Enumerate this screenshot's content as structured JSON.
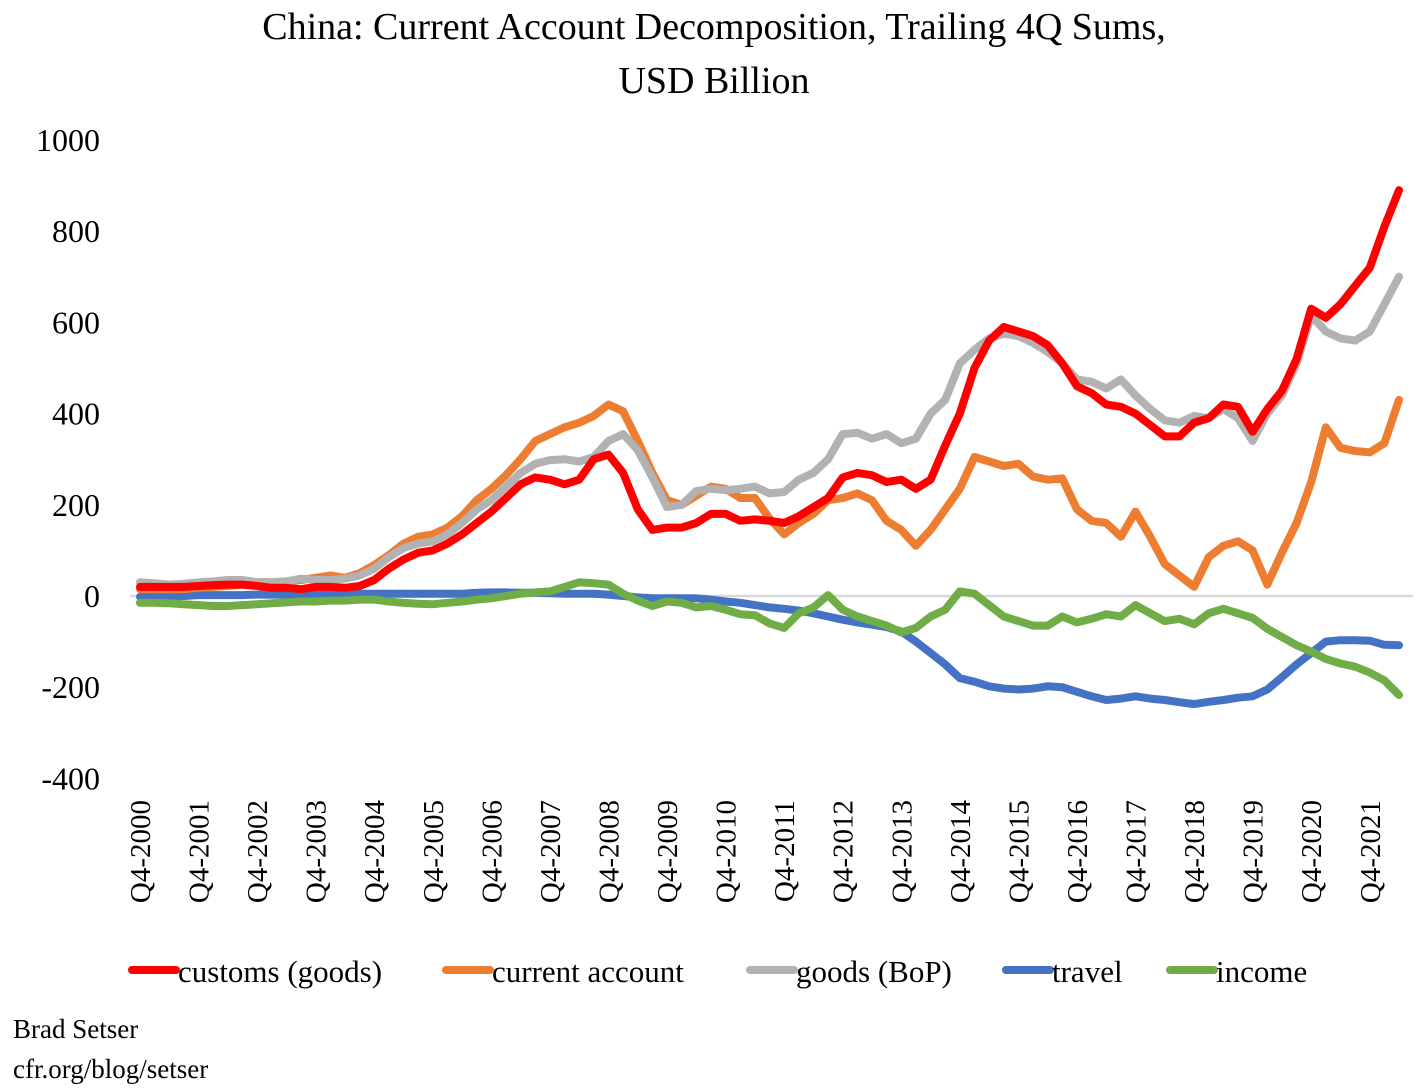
{
  "chart_data": {
    "type": "line",
    "title": "China: Current Account Decomposition, Trailing 4Q Sums,",
    "subtitle": "USD Billion",
    "xlabel": "",
    "ylabel": "",
    "ylim": [
      -400,
      1000
    ],
    "yticks": [
      1000,
      800,
      600,
      400,
      200,
      0,
      -200,
      -400
    ],
    "x_start": "Q4-2000",
    "x_end": "Q2-2022",
    "frequency": "quarterly",
    "xtick_labels": [
      "Q4-2000",
      "Q4-2001",
      "Q4-2002",
      "Q4-2003",
      "Q4-2004",
      "Q4-2005",
      "Q4-2006",
      "Q4-2007",
      "Q4-2008",
      "Q4-2009",
      "Q4-2010",
      "Q4-2011",
      "Q4-2012",
      "Q4-2013",
      "Q4-2014",
      "Q4-2015",
      "Q4-2016",
      "Q4-2017",
      "Q4-2018",
      "Q4-2019",
      "Q4-2020",
      "Q4-2021"
    ],
    "grid": false,
    "zero_line": true,
    "legend_position": "bottom",
    "series": [
      {
        "name": "customs (goods)",
        "color": "#ff0000",
        "values": [
          20,
          20,
          20,
          20,
          22,
          24,
          25,
          25,
          22,
          18,
          18,
          15,
          20,
          20,
          18,
          22,
          35,
          60,
          80,
          95,
          100,
          115,
          135,
          160,
          185,
          215,
          245,
          260,
          255,
          245,
          255,
          300,
          310,
          270,
          190,
          145,
          150,
          150,
          160,
          180,
          180,
          165,
          168,
          165,
          160,
          175,
          195,
          215,
          260,
          270,
          265,
          250,
          255,
          235,
          255,
          330,
          400,
          500,
          560,
          590,
          580,
          570,
          550,
          510,
          460,
          445,
          420,
          415,
          400,
          375,
          350,
          350,
          380,
          390,
          420,
          415,
          360,
          410,
          450,
          520,
          630,
          610,
          640,
          680,
          720,
          810,
          890
        ]
      },
      {
        "name": "current account",
        "color": "#ed7d31",
        "values": [
          15,
          15,
          15,
          15,
          18,
          20,
          22,
          25,
          30,
          30,
          32,
          35,
          40,
          45,
          40,
          50,
          68,
          90,
          115,
          130,
          135,
          150,
          175,
          210,
          235,
          265,
          300,
          340,
          355,
          370,
          380,
          395,
          420,
          405,
          340,
          270,
          210,
          200,
          220,
          240,
          235,
          215,
          215,
          170,
          135,
          160,
          180,
          210,
          215,
          225,
          210,
          165,
          145,
          110,
          145,
          190,
          235,
          305,
          295,
          285,
          290,
          262,
          255,
          258,
          190,
          165,
          160,
          130,
          185,
          130,
          70,
          45,
          20,
          85,
          110,
          120,
          100,
          25,
          95,
          160,
          250,
          370,
          325,
          318,
          315,
          335,
          430
        ]
      },
      {
        "name": "goods (BoP)",
        "color": "#b2b2b2",
        "values": [
          30,
          28,
          25,
          27,
          30,
          32,
          35,
          35,
          30,
          30,
          32,
          38,
          35,
          35,
          38,
          45,
          60,
          85,
          105,
          115,
          120,
          135,
          160,
          190,
          210,
          240,
          270,
          290,
          298,
          300,
          295,
          305,
          340,
          355,
          320,
          260,
          195,
          200,
          230,
          235,
          232,
          235,
          240,
          225,
          228,
          255,
          270,
          300,
          355,
          358,
          345,
          355,
          335,
          345,
          400,
          430,
          510,
          540,
          565,
          575,
          570,
          555,
          535,
          510,
          475,
          470,
          455,
          475,
          440,
          410,
          385,
          380,
          395,
          390,
          410,
          390,
          340,
          400,
          440,
          510,
          615,
          580,
          565,
          560,
          580,
          640,
          700
        ]
      },
      {
        "name": "travel",
        "color": "#4472c4",
        "values": [
          -2,
          0,
          0,
          0,
          2,
          2,
          2,
          2,
          3,
          3,
          3,
          3,
          3,
          3,
          5,
          5,
          5,
          5,
          5,
          5,
          5,
          5,
          5,
          7,
          8,
          8,
          7,
          7,
          6,
          5,
          5,
          5,
          3,
          0,
          -3,
          -5,
          -5,
          -5,
          -5,
          -8,
          -12,
          -15,
          -20,
          -25,
          -28,
          -32,
          -38,
          -45,
          -52,
          -58,
          -63,
          -68,
          -78,
          -100,
          -125,
          -150,
          -180,
          -188,
          -198,
          -203,
          -205,
          -203,
          -198,
          -200,
          -210,
          -220,
          -228,
          -225,
          -220,
          -225,
          -228,
          -233,
          -237,
          -232,
          -228,
          -223,
          -220,
          -205,
          -178,
          -150,
          -125,
          -100,
          -97,
          -97,
          -98,
          -107,
          -108
        ]
      },
      {
        "name": "income",
        "color": "#70ad47",
        "values": [
          -15,
          -15,
          -16,
          -18,
          -20,
          -22,
          -22,
          -20,
          -18,
          -16,
          -14,
          -12,
          -12,
          -10,
          -10,
          -8,
          -8,
          -12,
          -15,
          -17,
          -18,
          -15,
          -12,
          -8,
          -5,
          0,
          5,
          8,
          10,
          20,
          30,
          28,
          25,
          5,
          -10,
          -22,
          -12,
          -15,
          -25,
          -22,
          -30,
          -40,
          -42,
          -60,
          -70,
          -38,
          -25,
          2,
          -30,
          -45,
          -55,
          -65,
          -80,
          -70,
          -45,
          -30,
          10,
          5,
          -20,
          -45,
          -55,
          -65,
          -65,
          -45,
          -58,
          -50,
          -40,
          -45,
          -20,
          -38,
          -55,
          -50,
          -62,
          -38,
          -28,
          -38,
          -48,
          -72,
          -90,
          -108,
          -122,
          -138,
          -148,
          -155,
          -168,
          -185,
          -217
        ]
      }
    ]
  },
  "footer": {
    "author": "Brad Setser",
    "source": "cfr.org/blog/setser"
  }
}
